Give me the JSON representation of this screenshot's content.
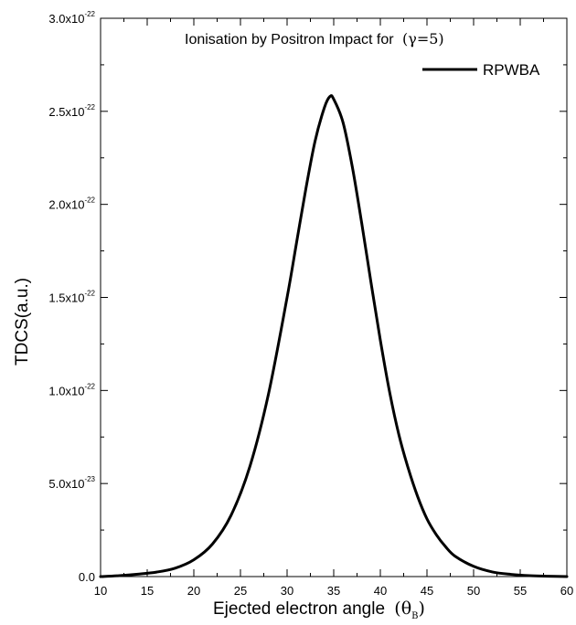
{
  "chart_data": {
    "type": "line",
    "title_prefix": "Ionisation by Positron Impact for",
    "title_param": "(γ=5)",
    "xlabel_text": "Ejected electron angle",
    "xlabel_symbol": "θ",
    "xlabel_subscript": "B",
    "ylabel": "TDCS(a.u.)",
    "xlim": [
      10,
      60
    ],
    "ylim": [
      0,
      3e-22
    ],
    "x_ticks": [
      10,
      15,
      20,
      25,
      30,
      35,
      40,
      45,
      50,
      55,
      60
    ],
    "y_ticks": [
      {
        "value": 0,
        "mantissa": "0.0",
        "exponent": ""
      },
      {
        "value": 5e-23,
        "mantissa": "5.0x10",
        "exponent": "-23"
      },
      {
        "value": 1e-22,
        "mantissa": "1.0x10",
        "exponent": "-22"
      },
      {
        "value": 1.5e-22,
        "mantissa": "1.5x10",
        "exponent": "-22"
      },
      {
        "value": 2e-22,
        "mantissa": "2.0x10",
        "exponent": "-22"
      },
      {
        "value": 2.5e-22,
        "mantissa": "2.5x10",
        "exponent": "-22"
      },
      {
        "value": 3e-22,
        "mantissa": "3.0x10",
        "exponent": "-22"
      }
    ],
    "legend_position": "top-right",
    "grid": false,
    "series": [
      {
        "name": "RPWBA",
        "color": "#000000",
        "points": [
          [
            10,
            0.0
          ],
          [
            12,
            5e-25
          ],
          [
            14,
            1.3e-24
          ],
          [
            16,
            2.4e-24
          ],
          [
            18,
            4.5e-24
          ],
          [
            20,
            9e-24
          ],
          [
            22,
            1.75e-23
          ],
          [
            24,
            3.3e-23
          ],
          [
            26,
            5.9e-23
          ],
          [
            28,
            9.8e-23
          ],
          [
            30,
            1.5e-22
          ],
          [
            31,
            1.79e-22
          ],
          [
            32,
            2.08e-22
          ],
          [
            33,
            2.34e-22
          ],
          [
            34,
            2.52e-22
          ],
          [
            34.6,
            2.58e-22
          ],
          [
            35,
            2.565e-22
          ],
          [
            36,
            2.44e-22
          ],
          [
            37,
            2.2e-22
          ],
          [
            38,
            1.9e-22
          ],
          [
            39,
            1.58e-22
          ],
          [
            40,
            1.27e-22
          ],
          [
            41,
            9.9e-23
          ],
          [
            42,
            7.6e-23
          ],
          [
            43,
            5.8e-23
          ],
          [
            44,
            4.3e-23
          ],
          [
            45,
            3.1e-23
          ],
          [
            46,
            2.25e-23
          ],
          [
            47,
            1.6e-23
          ],
          [
            48,
            1.1e-23
          ],
          [
            50,
            5.5e-24
          ],
          [
            52,
            2.5e-24
          ],
          [
            54,
            1.2e-24
          ],
          [
            56,
            5e-25
          ],
          [
            58,
            2e-25
          ],
          [
            60,
            0.0
          ]
        ]
      }
    ]
  }
}
